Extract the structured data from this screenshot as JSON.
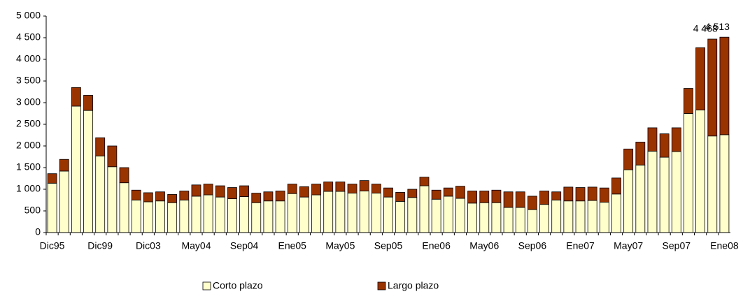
{
  "chart_data": {
    "type": "stacked_bar",
    "categories": [
      "Dic95",
      null,
      null,
      null,
      "Dic99",
      null,
      null,
      null,
      "Dic03",
      null,
      null,
      null,
      "May04",
      null,
      null,
      null,
      "Sep04",
      null,
      null,
      null,
      "Ene05",
      null,
      null,
      null,
      "May05",
      null,
      null,
      null,
      "Sep05",
      null,
      null,
      null,
      "Ene06",
      null,
      null,
      null,
      "May06",
      null,
      null,
      null,
      "Sep06",
      null,
      null,
      null,
      "Ene07",
      null,
      null,
      null,
      "May07",
      null,
      null,
      null,
      "Sep07",
      null,
      null,
      null,
      "Ene08"
    ],
    "series": [
      {
        "name": "Corto plazo",
        "color": "#ffffcc",
        "values": [
          1140,
          1420,
          2920,
          2820,
          1770,
          1520,
          1150,
          750,
          710,
          730,
          690,
          750,
          840,
          870,
          820,
          780,
          830,
          690,
          730,
          730,
          900,
          820,
          870,
          950,
          950,
          910,
          960,
          910,
          820,
          720,
          810,
          1080,
          770,
          840,
          790,
          680,
          690,
          690,
          580,
          580,
          530,
          650,
          750,
          730,
          730,
          740,
          700,
          890,
          1450,
          1560,
          1880,
          1740,
          1870,
          2750,
          2830,
          2230,
          2260
        ]
      },
      {
        "name": "Largo plazo",
        "color": "#993300",
        "values": [
          220,
          270,
          430,
          350,
          420,
          480,
          350,
          230,
          210,
          210,
          190,
          210,
          260,
          250,
          260,
          260,
          250,
          220,
          210,
          230,
          220,
          240,
          250,
          220,
          220,
          210,
          240,
          210,
          210,
          210,
          190,
          200,
          210,
          190,
          280,
          280,
          270,
          290,
          360,
          360,
          310,
          310,
          190,
          320,
          310,
          310,
          330,
          370,
          480,
          530,
          540,
          540,
          550,
          580,
          1440,
          2238,
          2253
        ]
      }
    ],
    "total_labels": [
      null,
      null,
      null,
      null,
      null,
      null,
      null,
      null,
      null,
      null,
      null,
      null,
      null,
      null,
      null,
      null,
      null,
      null,
      null,
      null,
      null,
      null,
      null,
      null,
      null,
      null,
      null,
      null,
      null,
      null,
      null,
      null,
      null,
      null,
      null,
      null,
      null,
      null,
      null,
      null,
      null,
      null,
      null,
      null,
      null,
      null,
      null,
      null,
      null,
      null,
      null,
      null,
      null,
      null,
      null,
      "4 468",
      "4 513"
    ],
    "ylim": [
      0,
      5000
    ],
    "yticks": [
      0,
      500,
      {
        "value": 1000,
        "label": "1 000"
      },
      {
        "value": 1500,
        "label": "1 500"
      },
      {
        "value": 2000,
        "label": "2 000"
      },
      {
        "value": 2500,
        "label": "2 500"
      },
      {
        "value": 3000,
        "label": "3 000"
      },
      {
        "value": 3500,
        "label": "3 500"
      },
      {
        "value": 4000,
        "label": "4 000"
      },
      {
        "value": 4500,
        "label": "4 500"
      },
      {
        "value": 5000,
        "label": "5 000"
      }
    ],
    "grid": false,
    "legend": "bottom"
  }
}
